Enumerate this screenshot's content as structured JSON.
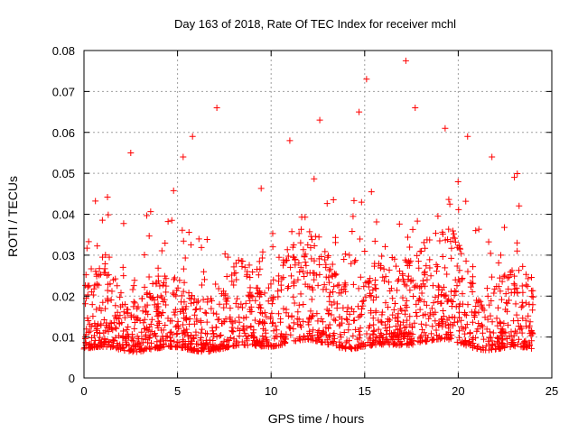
{
  "chart_data": {
    "type": "scatter",
    "title": "Day 163 of 2018, Rate Of TEC Index for receiver mchl",
    "xlabel": "GPS time / hours",
    "ylabel": "ROTI / TECUs",
    "xlim": [
      0,
      25
    ],
    "ylim": [
      0,
      0.08
    ],
    "x_ticks": [
      0,
      5,
      10,
      15,
      20,
      25
    ],
    "x_tick_labels": [
      "0",
      "5",
      "10",
      "15",
      "20",
      "25"
    ],
    "y_ticks": [
      0,
      0.01,
      0.02,
      0.03,
      0.04,
      0.05,
      0.06,
      0.07,
      0.08
    ],
    "y_tick_labels": [
      "0",
      "0.01",
      "0.02",
      "0.03",
      "0.04",
      "0.05",
      "0.06",
      "0.07",
      "0.08"
    ],
    "grid": true,
    "marker": "+",
    "color": "#ff0000",
    "series": [
      {
        "name": "ROTI",
        "sample_count": 1800,
        "note": "dense scatter 0-24 h, typical values 0.005-0.03 TECU/min",
        "peaks": [
          {
            "x": 2.5,
            "y": 0.055
          },
          {
            "x": 5.3,
            "y": 0.054
          },
          {
            "x": 5.8,
            "y": 0.059
          },
          {
            "x": 7.1,
            "y": 0.066
          },
          {
            "x": 11.0,
            "y": 0.058
          },
          {
            "x": 12.6,
            "y": 0.063
          },
          {
            "x": 14.7,
            "y": 0.065
          },
          {
            "x": 15.1,
            "y": 0.073
          },
          {
            "x": 17.2,
            "y": 0.0775
          },
          {
            "x": 17.7,
            "y": 0.066
          },
          {
            "x": 19.3,
            "y": 0.061
          },
          {
            "x": 20.5,
            "y": 0.059
          },
          {
            "x": 21.8,
            "y": 0.054
          },
          {
            "x": 23.0,
            "y": 0.049
          }
        ]
      }
    ]
  }
}
